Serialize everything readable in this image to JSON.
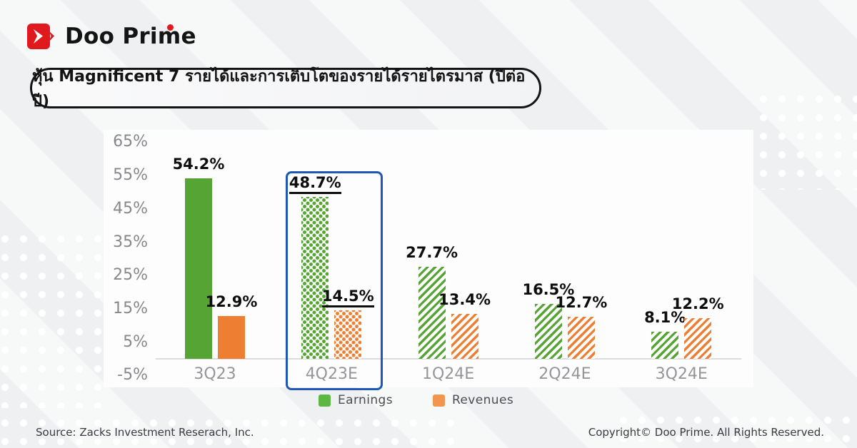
{
  "page": {
    "background_color": "#eff0f2"
  },
  "header": {
    "logo_text": "Doo Prime",
    "logo_color": "#e0191f"
  },
  "banner": {
    "title": "หุ้น Magnificent 7 รายได้และการเติบโตของรายได้รายไตรมาส (ปีต่อปี)"
  },
  "chart_data": {
    "type": "bar",
    "title": "หุ้น Magnificent 7 รายได้และการเติบโตของรายได้รายไตรมาส (ปีต่อปี)",
    "categories": [
      "3Q23",
      "4Q23E",
      "1Q24E",
      "2Q24E",
      "3Q24E"
    ],
    "series": [
      {
        "name": "Earnings",
        "color": "#56a434",
        "values": [
          54.2,
          48.7,
          27.7,
          16.5,
          8.1
        ],
        "value_labels": [
          "54.2%",
          "48.7%",
          "27.7%",
          "16.5%",
          "8.1%"
        ]
      },
      {
        "name": "Revenues",
        "color": "#ee7e31",
        "values": [
          12.9,
          14.5,
          13.4,
          12.7,
          12.2
        ],
        "value_labels": [
          "12.9%",
          "14.5%",
          "13.4%",
          "12.7%",
          "12.2%"
        ]
      }
    ],
    "y_tick_labels": [
      "65%",
      "55%",
      "45%",
      "35%",
      "25%",
      "15%",
      "5%",
      "-5%"
    ],
    "y_tick_values": [
      65,
      55,
      45,
      35,
      25,
      15,
      5,
      -5
    ],
    "ylim": [
      -5,
      65
    ],
    "grid": false,
    "legend_position": "bottom",
    "bar_fill_styles": [
      "solid",
      "dots",
      "hatch",
      "hatch",
      "hatch"
    ],
    "highlight": {
      "category_index": 1,
      "color": "#1e57b8",
      "underline_value_labels": true
    }
  },
  "legend": {
    "items": [
      {
        "label": "Earnings",
        "color": "#5cb843"
      },
      {
        "label": "Revenues",
        "color": "#f2964f"
      }
    ]
  },
  "footer": {
    "source": "Source: Zacks Investment Reserach, Inc.",
    "copyright": "Copyright© Doo Prime. All Rights Reserved."
  }
}
